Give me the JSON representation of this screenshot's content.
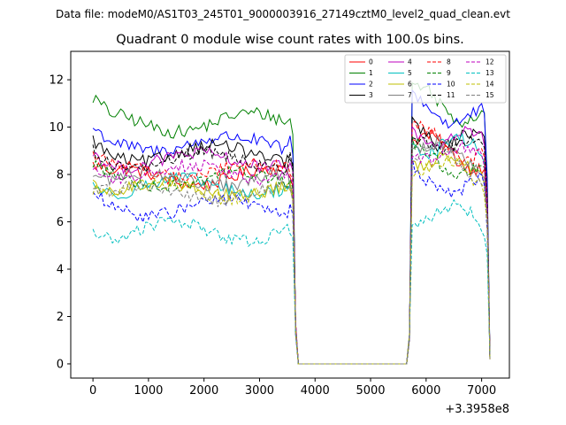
{
  "chart_data": {
    "type": "line",
    "suptitle": "Data file: modeM0/AS1T03_245T01_9000003916_27149cztM0_level2_quad_clean.evt",
    "title": "Quadrant 0 module wise count rates with 100.0s bins.",
    "xlabel": "",
    "ylabel": "",
    "x_offset_label": "+3.3958e8",
    "xlim": [
      -400,
      7500
    ],
    "ylim": [
      -0.6,
      13.2
    ],
    "xticks": [
      0,
      1000,
      2000,
      3000,
      4000,
      5000,
      6000,
      7000
    ],
    "yticks": [
      0,
      2,
      4,
      6,
      8,
      10,
      12
    ],
    "grid": false,
    "legend_position": "top-right",
    "series": [
      {
        "name": "0",
        "color": "#ff0000",
        "style": "solid",
        "base": 7.9,
        "amp": 0.35,
        "phase": 0.3,
        "high": 9.3
      },
      {
        "name": "1",
        "color": "#008000",
        "style": "solid",
        "base": 10.2,
        "amp": 0.4,
        "phase": 1.1,
        "high": 11.3
      },
      {
        "name": "2",
        "color": "#0000ff",
        "style": "solid",
        "base": 9.3,
        "amp": 0.3,
        "phase": 2.0,
        "high": 11.0
      },
      {
        "name": "3",
        "color": "#000000",
        "style": "solid",
        "base": 8.9,
        "amp": 0.35,
        "phase": 2.7,
        "high": 10.0
      },
      {
        "name": "4",
        "color": "#bf00bf",
        "style": "solid",
        "base": 8.6,
        "amp": 0.3,
        "phase": 3.4,
        "high": 9.9
      },
      {
        "name": "5",
        "color": "#00bfbf",
        "style": "solid",
        "base": 7.5,
        "amp": 0.35,
        "phase": 4.1,
        "high": 9.5
      },
      {
        "name": "6",
        "color": "#bfbf00",
        "style": "solid",
        "base": 7.4,
        "amp": 0.3,
        "phase": 4.8,
        "high": 8.8
      },
      {
        "name": "7",
        "color": "#808080",
        "style": "solid",
        "base": 7.8,
        "amp": 0.3,
        "phase": 5.5,
        "high": 9.2
      },
      {
        "name": "8",
        "color": "#ff0000",
        "style": "dashed",
        "base": 8.2,
        "amp": 0.3,
        "phase": 0.9,
        "high": 9.6
      },
      {
        "name": "9",
        "color": "#008000",
        "style": "dashed",
        "base": 7.8,
        "amp": 0.3,
        "phase": 1.6,
        "high": 8.9
      },
      {
        "name": "10",
        "color": "#0000ff",
        "style": "dashed",
        "base": 6.6,
        "amp": 0.35,
        "phase": 2.3,
        "high": 8.0
      },
      {
        "name": "11",
        "color": "#000000",
        "style": "dashed",
        "base": 8.6,
        "amp": 0.35,
        "phase": 3.0,
        "high": 9.7
      },
      {
        "name": "12",
        "color": "#bf00bf",
        "style": "dashed",
        "base": 8.1,
        "amp": 0.3,
        "phase": 3.7,
        "high": 9.2
      },
      {
        "name": "13",
        "color": "#00bfbf",
        "style": "dashed",
        "base": 5.6,
        "amp": 0.4,
        "phase": 4.4,
        "high": 6.6
      },
      {
        "name": "14",
        "color": "#bfbf00",
        "style": "dashed",
        "base": 7.3,
        "amp": 0.3,
        "phase": 5.1,
        "high": 8.5
      },
      {
        "name": "15",
        "color": "#808080",
        "style": "dashed",
        "base": 7.2,
        "amp": 0.3,
        "phase": 5.8,
        "high": 8.9
      }
    ]
  }
}
